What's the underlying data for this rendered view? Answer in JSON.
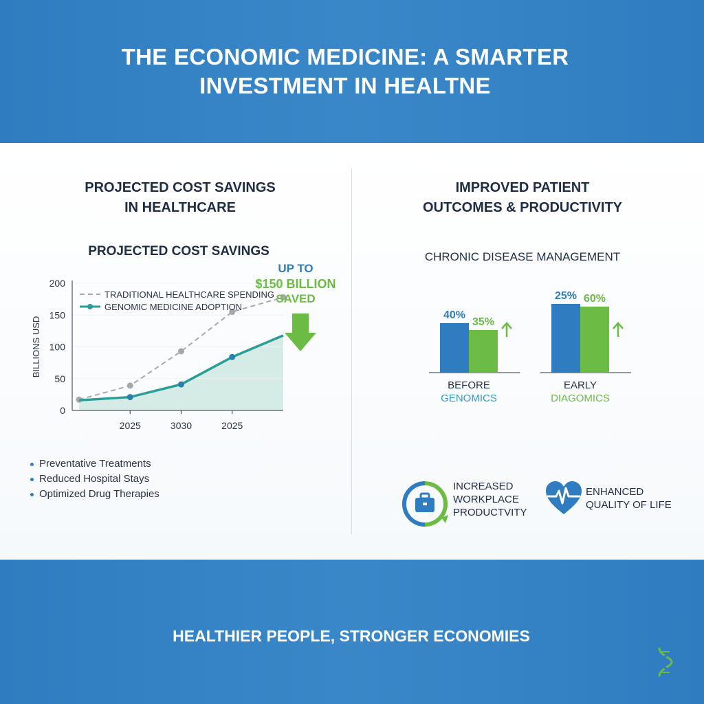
{
  "header": {
    "title_line1": "THE ECONOMIC MEDICINE: A SMARTER",
    "title_line2": "INVESTMENT IN HEALTNE",
    "color": "#2f7dc0"
  },
  "left": {
    "title_line1": "PROJECTED COST SAVINGS",
    "title_line2": "IN HEALTHCARE",
    "bullets": [
      "Preventative Treatments",
      "Reduced Hospital Stays",
      "Optimized Drug Therapies"
    ],
    "callout": {
      "line1": "UP TO",
      "line2": "$150 BILLION",
      "line3": "SAVED"
    }
  },
  "right": {
    "title_line1": "IMPROVED PATIENT",
    "title_line2": "OUTCOMES & PRODUCTIVITY",
    "outcomes": [
      {
        "icon": "briefcase-cycle-icon",
        "lines": [
          "INCREASED",
          "WORKPLACE",
          "PRODUCTVITY"
        ]
      },
      {
        "icon": "heart-pulse-icon",
        "lines": [
          "ENHANCED",
          "QUALITY OF LIFE"
        ]
      }
    ]
  },
  "footer": {
    "tagline": "HEALTHIER PEOPLE, STRONGER ECONOMIES",
    "icon": "dna-icon"
  },
  "colors": {
    "blue": "#2f7dc0",
    "green": "#6cbb45",
    "teal": "#2a9d96",
    "gray": "#a8a8a8"
  },
  "chart_data": [
    {
      "type": "line",
      "title": "PROJECTED COST SAVINGS",
      "ylabel": "BILLIONS USD",
      "xlabel": "",
      "ylim": [
        0,
        200
      ],
      "yticks": [
        0,
        50,
        100,
        150,
        200
      ],
      "xtick_labels": [
        "2025",
        "3030",
        "2025"
      ],
      "legend_position": "top-left",
      "series": [
        {
          "name": "TRADITIONAL HEALTHCARE SPENDING",
          "style": "dashed",
          "color": "#a8a8a8",
          "points": [
            [
              0,
              17
            ],
            [
              1,
              39
            ],
            [
              2,
              93
            ],
            [
              3,
              155
            ],
            [
              4,
              178
            ]
          ]
        },
        {
          "name": "GENOMIC MEDICINE ADOPTION",
          "style": "solid-area",
          "color": "#2a9d96",
          "points": [
            [
              0,
              16
            ],
            [
              1,
              21
            ],
            [
              2,
              41
            ],
            [
              3,
              84
            ],
            [
              4,
              118
            ]
          ]
        }
      ]
    },
    {
      "type": "bar",
      "title": "CHRONIC DISEASE MANAGEMENT",
      "groups": [
        {
          "label1": "BEFORE",
          "label2": "GENOMICS",
          "values": [
            40,
            35
          ],
          "value_labels": [
            "40%",
            "35%"
          ]
        },
        {
          "label1": "EARLY",
          "label2": "DIAGOMICS",
          "values": [
            25,
            60
          ],
          "value_labels": [
            "25%",
            "60%"
          ]
        }
      ],
      "series_colors": [
        "#2f7dc0",
        "#6cbb45"
      ]
    }
  ]
}
